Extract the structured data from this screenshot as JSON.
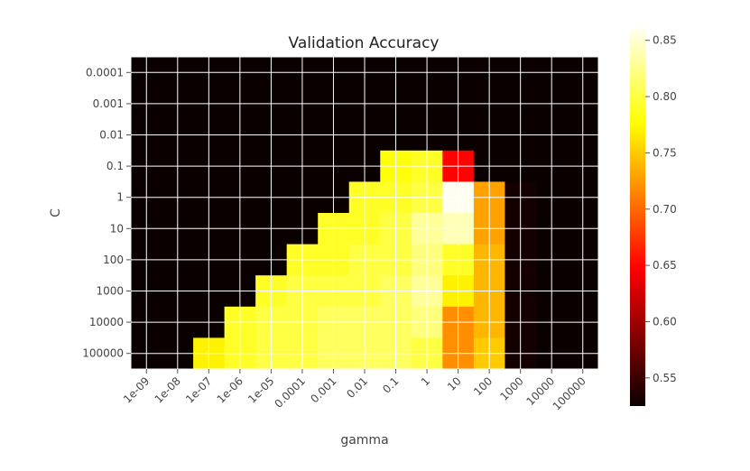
{
  "chart_data": {
    "type": "heatmap",
    "title": "Validation Accuracy",
    "xlabel": "gamma",
    "ylabel": "C",
    "x_ticks": [
      "1e-09",
      "1e-08",
      "1e-07",
      "1e-06",
      "1e-05",
      "0.0001",
      "0.001",
      "0.01",
      "0.1",
      "1",
      "10",
      "100",
      "1000",
      "10000",
      "100000"
    ],
    "y_ticks": [
      "0.0001",
      "0.001",
      "0.01",
      "0.1",
      "1",
      "10",
      "100",
      "1000",
      "10000",
      "100000"
    ],
    "grid": true,
    "colormap": "hot",
    "colorbar": {
      "range": [
        0.525,
        0.865
      ],
      "ticks": [
        "0.55",
        "0.60",
        "0.65",
        "0.70",
        "0.75",
        "0.80",
        "0.85"
      ],
      "tick_values": [
        0.55,
        0.6,
        0.65,
        0.7,
        0.75,
        0.8,
        0.85
      ]
    },
    "values": [
      [
        0.52,
        0.52,
        0.52,
        0.52,
        0.52,
        0.52,
        0.52,
        0.52,
        0.52,
        0.52,
        0.52,
        0.52,
        0.52,
        0.52,
        0.52
      ],
      [
        0.52,
        0.52,
        0.52,
        0.52,
        0.52,
        0.52,
        0.52,
        0.52,
        0.52,
        0.52,
        0.52,
        0.52,
        0.52,
        0.52,
        0.52
      ],
      [
        0.52,
        0.52,
        0.52,
        0.52,
        0.52,
        0.52,
        0.52,
        0.52,
        0.52,
        0.52,
        0.52,
        0.52,
        0.52,
        0.52,
        0.52
      ],
      [
        0.52,
        0.52,
        0.52,
        0.52,
        0.52,
        0.52,
        0.52,
        0.52,
        0.78,
        0.79,
        0.65,
        0.52,
        0.52,
        0.52,
        0.52
      ],
      [
        0.52,
        0.52,
        0.52,
        0.52,
        0.52,
        0.52,
        0.52,
        0.79,
        0.79,
        0.8,
        0.86,
        0.73,
        0.53,
        0.52,
        0.52
      ],
      [
        0.52,
        0.52,
        0.52,
        0.52,
        0.52,
        0.52,
        0.79,
        0.79,
        0.8,
        0.83,
        0.84,
        0.73,
        0.53,
        0.52,
        0.52
      ],
      [
        0.52,
        0.52,
        0.52,
        0.52,
        0.52,
        0.79,
        0.79,
        0.8,
        0.8,
        0.82,
        0.79,
        0.74,
        0.53,
        0.52,
        0.52
      ],
      [
        0.52,
        0.52,
        0.52,
        0.52,
        0.79,
        0.8,
        0.8,
        0.8,
        0.81,
        0.83,
        0.77,
        0.74,
        0.53,
        0.52,
        0.52
      ],
      [
        0.52,
        0.52,
        0.52,
        0.79,
        0.8,
        0.8,
        0.81,
        0.81,
        0.81,
        0.82,
        0.72,
        0.74,
        0.53,
        0.52,
        0.52
      ],
      [
        0.52,
        0.52,
        0.77,
        0.79,
        0.8,
        0.8,
        0.81,
        0.81,
        0.81,
        0.8,
        0.72,
        0.75,
        0.53,
        0.52,
        0.52
      ]
    ]
  }
}
